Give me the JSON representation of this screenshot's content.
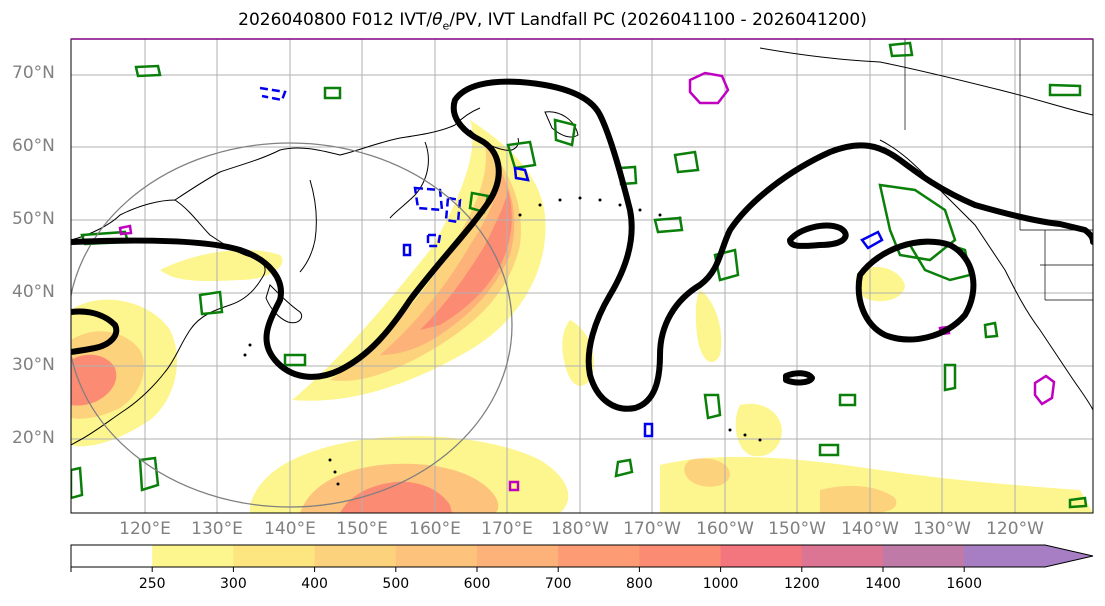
{
  "title": "2026040800 F012 IVT/θe/PV, IVT Landfall PC (2026041100 - 2026041200)",
  "title_parts": {
    "prefix": "2026040800 F012 IVT/",
    "theta": "θ",
    "sub": "e",
    "suffix": "/PV, IVT Landfall PC (2026041100 - 2026041200)"
  },
  "map": {
    "projection": "PlateCarree",
    "lon_range_deg_east": [
      112,
      253
    ],
    "lat_range": [
      10,
      75
    ],
    "lat_labels": [
      "70°N",
      "60°N",
      "50°N",
      "40°N",
      "30°N",
      "20°N"
    ],
    "lon_labels": [
      "120°E",
      "130°E",
      "140°E",
      "150°E",
      "160°E",
      "170°E",
      "180°W",
      "170°W",
      "160°W",
      "150°W",
      "140°W",
      "130°W",
      "120°W"
    ],
    "gridlines": true
  },
  "colorbar": {
    "ticks": [
      "250",
      "300",
      "400",
      "500",
      "600",
      "700",
      "800",
      "1000",
      "1200",
      "1400",
      "1600"
    ],
    "colors": [
      "#fdf68e",
      "#fde57f",
      "#fdd27d",
      "#fdc27b",
      "#fdb279",
      "#fd9b75",
      "#fc8b73",
      "#f3757e",
      "#dc7593",
      "#bf7aa8",
      "#a77dc4"
    ],
    "extend": "max"
  },
  "colors": {
    "ivt_fill_light": "#fdf68e",
    "ivt_fill_mid": "#fdc27b",
    "ivt_fill_high": "#fc8b73",
    "theta_e_contour": "#000000",
    "pv_positive": "#0a7f0a",
    "pv_negative": "#0000ee",
    "landfall_pc": "#c000c0",
    "circle": "#808080"
  }
}
